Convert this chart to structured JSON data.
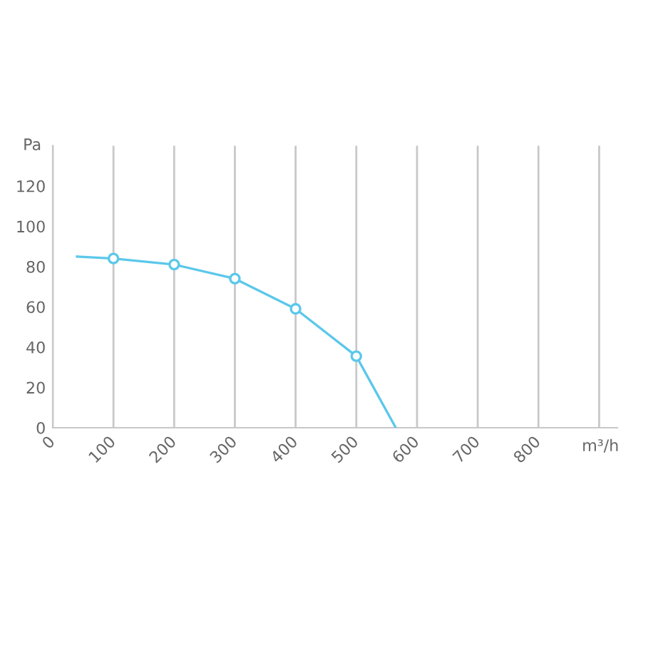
{
  "chart_data": {
    "type": "line",
    "xlabel": "m³/h",
    "ylabel": "Pa",
    "series": [
      {
        "type": "line",
        "color": "#5bc8ea",
        "x": [
          40,
          100,
          200,
          300,
          400,
          500,
          565
        ],
        "values": [
          85,
          84,
          81,
          74,
          59,
          35.5,
          0
        ],
        "marker": "none"
      },
      {
        "type": "scatter",
        "color": "#5bc8ea",
        "x": [
          100,
          200,
          300,
          400,
          500
        ],
        "values": [
          84,
          81,
          74,
          59,
          35.5
        ],
        "marker": "circle"
      }
    ],
    "xlim": [
      0,
      930
    ],
    "xticks": [
      0,
      100,
      200,
      300,
      400,
      500,
      600,
      700,
      800,
      {
        "value": 900,
        "label": null
      }
    ],
    "ylim": [
      0,
      140
    ],
    "yticks": [
      0,
      20,
      40,
      60,
      80,
      100,
      120
    ],
    "grid": "x",
    "legend": false
  }
}
